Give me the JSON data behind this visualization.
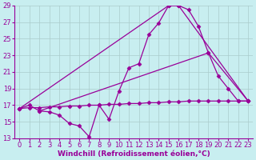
{
  "xlabel": "Windchill (Refroidissement éolien,°C)",
  "bg_color": "#c8eef0",
  "line_color": "#990099",
  "grid_color": "#aacccc",
  "xlim": [
    -0.5,
    23.5
  ],
  "ylim": [
    13,
    29
  ],
  "xticks": [
    0,
    1,
    2,
    3,
    4,
    5,
    6,
    7,
    8,
    9,
    10,
    11,
    12,
    13,
    14,
    15,
    16,
    17,
    18,
    19,
    20,
    21,
    22,
    23
  ],
  "yticks": [
    13,
    15,
    17,
    19,
    21,
    23,
    25,
    27,
    29
  ],
  "line1_x": [
    0,
    1,
    2,
    3,
    4,
    5,
    6,
    7,
    8,
    9,
    10,
    11,
    12,
    13,
    14,
    15,
    16,
    17,
    18,
    19,
    20,
    21,
    22,
    23
  ],
  "line1_y": [
    16.6,
    17.0,
    16.3,
    16.2,
    15.8,
    14.8,
    14.5,
    13.2,
    17.0,
    15.3,
    18.7,
    21.5,
    22.0,
    25.5,
    26.9,
    29.0,
    29.0,
    28.5,
    26.5,
    23.3,
    20.5,
    19.0,
    17.5,
    17.5
  ],
  "line2_x": [
    0,
    1,
    2,
    3,
    4,
    5,
    6,
    7,
    8,
    9,
    10,
    11,
    12,
    13,
    14,
    15,
    16,
    17,
    18,
    19,
    20,
    21,
    22,
    23
  ],
  "line2_y": [
    16.6,
    16.7,
    16.7,
    16.8,
    16.8,
    16.9,
    16.9,
    17.0,
    17.0,
    17.1,
    17.1,
    17.2,
    17.2,
    17.3,
    17.3,
    17.4,
    17.4,
    17.5,
    17.5,
    17.5,
    17.5,
    17.5,
    17.5,
    17.5
  ],
  "line3_x": [
    0,
    15,
    16,
    23
  ],
  "line3_y": [
    16.6,
    29.0,
    29.0,
    17.5
  ],
  "line4_x": [
    2,
    19,
    23
  ],
  "line4_y": [
    16.3,
    23.3,
    17.5
  ],
  "marker": "D",
  "markersize": 2.5,
  "linewidth": 0.9,
  "xlabel_fontsize": 6.5,
  "tick_fontsize": 6.0
}
